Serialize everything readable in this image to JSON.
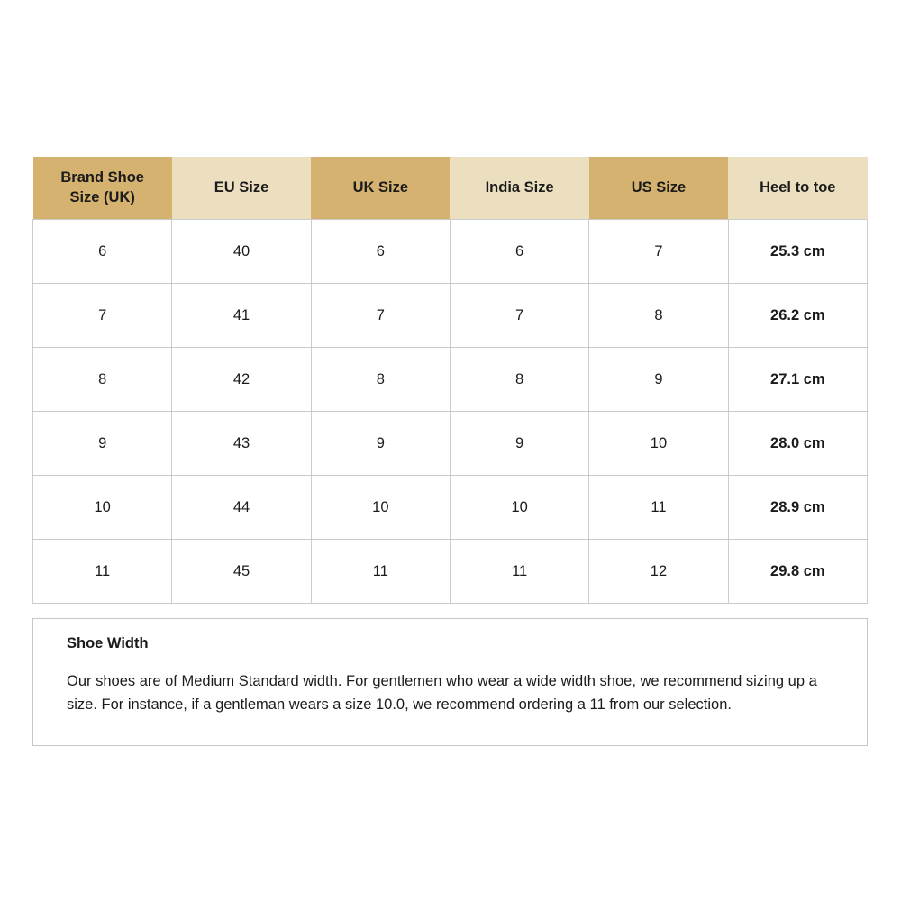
{
  "table": {
    "headers": [
      {
        "label": "Brand Shoe Size (UK)",
        "style": "dark"
      },
      {
        "label": "EU Size",
        "style": "light"
      },
      {
        "label": "UK Size",
        "style": "dark"
      },
      {
        "label": "India Size",
        "style": "light"
      },
      {
        "label": "US Size",
        "style": "dark"
      },
      {
        "label": "Heel to toe",
        "style": "light"
      }
    ],
    "rows": [
      [
        "6",
        "40",
        "6",
        "6",
        "7",
        "25.3 cm"
      ],
      [
        "7",
        "41",
        "7",
        "7",
        "8",
        "26.2 cm"
      ],
      [
        "8",
        "42",
        "8",
        "8",
        "9",
        "27.1 cm"
      ],
      [
        "9",
        "43",
        "9",
        "9",
        "10",
        "28.0 cm"
      ],
      [
        "10",
        "44",
        "10",
        "10",
        "11",
        "28.9 cm"
      ],
      [
        "11",
        "45",
        "11",
        "11",
        "12",
        "29.8 cm"
      ]
    ]
  },
  "note": {
    "title": "Shoe Width",
    "body": "Our shoes are of Medium Standard width. For gentlemen who wear a wide width shoe, we recommend sizing up a size. For instance, if a gentleman wears a size 10.0, we recommend ordering a 11 from our selection."
  },
  "colors": {
    "header_dark": "#D5B26F",
    "header_light": "#EBDFC0",
    "cell_border": "#CBCBCB",
    "text": "#1B1B1B",
    "background": "#FFFFFF"
  }
}
